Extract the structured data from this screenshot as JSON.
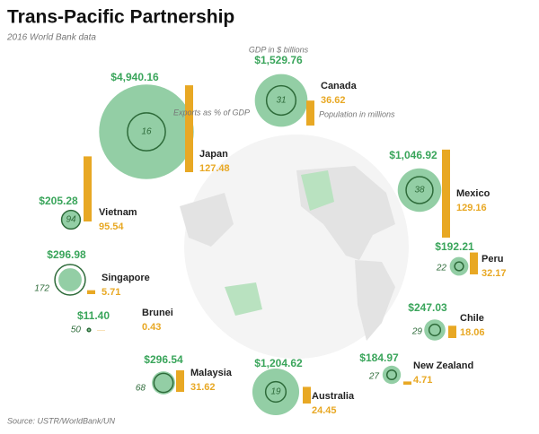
{
  "chart_data": {
    "type": "bubble",
    "title": "Trans-Pacific Partnership",
    "subtitle": "2016 World Bank data",
    "source": "Source: USTR/WorldBank/UN",
    "categories": [
      "Japan",
      "Canada",
      "Vietnam",
      "Singapore",
      "Brunei",
      "Malaysia",
      "Australia",
      "New Zealand",
      "Chile",
      "Peru",
      "Mexico"
    ],
    "series": [
      {
        "name": "GDP in $ billions",
        "color": "#3aa55b",
        "values": [
          4940.16,
          1529.76,
          205.28,
          296.98,
          11.4,
          296.54,
          1204.62,
          184.97,
          247.03,
          192.21,
          1046.92
        ],
        "value_labels": [
          "$4,940.16",
          "$1,529.76",
          "$205.28",
          "$296.98",
          "$11.40",
          "$296.54",
          "$1,204.62",
          "$184.97",
          "$247.03",
          "$192.21",
          "$1,046.92"
        ]
      },
      {
        "name": "Exports as % of GDP",
        "color": "#2e6b3a",
        "values": [
          16,
          31,
          94,
          172,
          50,
          68,
          19,
          27,
          29,
          22,
          38
        ]
      },
      {
        "name": "Population in millions",
        "color": "#e8a824",
        "values": [
          127.48,
          36.62,
          95.54,
          5.71,
          0.43,
          31.62,
          24.45,
          4.71,
          18.06,
          32.17,
          129.16
        ]
      }
    ]
  }
}
